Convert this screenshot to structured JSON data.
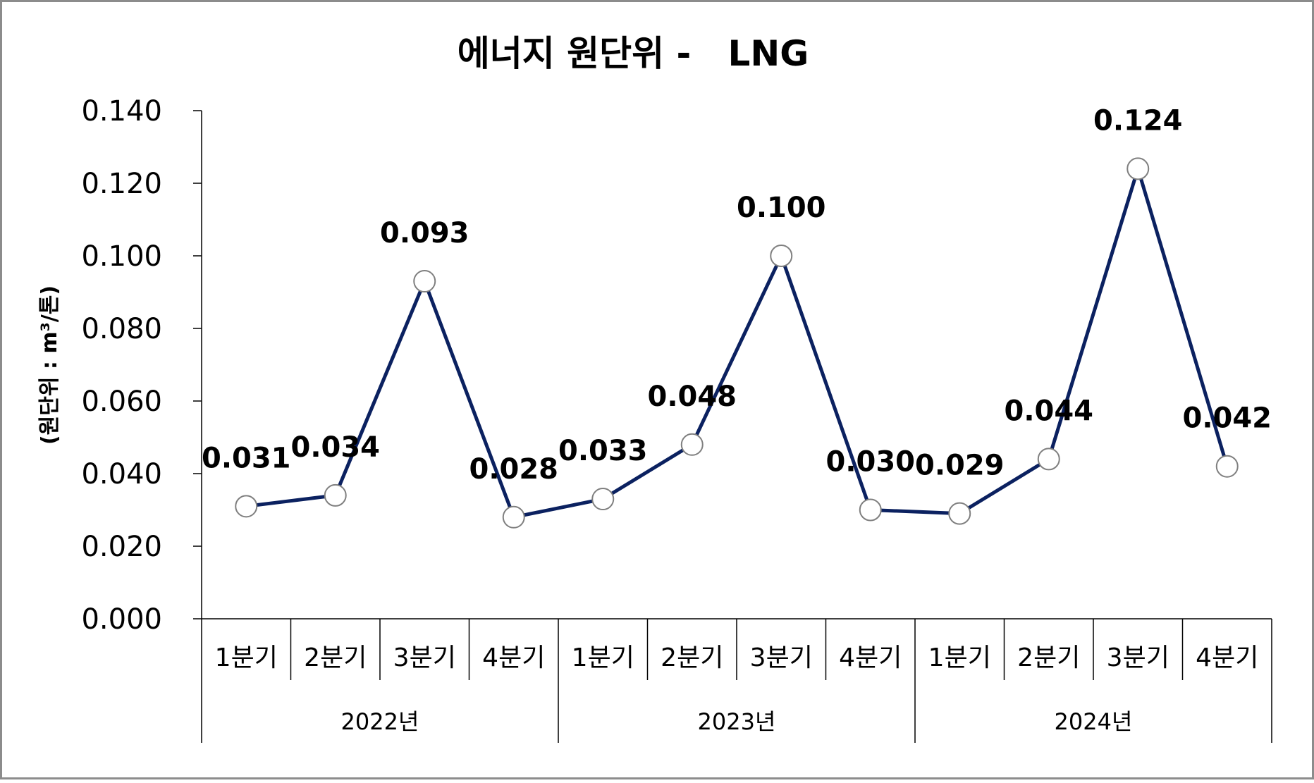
{
  "chart_data": {
    "type": "line",
    "title": "에너지 원단위 -   LNG",
    "ylabel": "(원단위 : m³/톤)",
    "xlabel": "",
    "ylim": [
      0,
      0.14
    ],
    "y_ticks": [
      "0.000",
      "0.020",
      "0.040",
      "0.060",
      "0.080",
      "0.100",
      "0.120",
      "0.140"
    ],
    "grid": false,
    "legend": "none",
    "categories": [
      "1분기",
      "2분기",
      "3분기",
      "4분기",
      "1분기",
      "2분기",
      "3분기",
      "4분기",
      "1분기",
      "2분기",
      "3분기",
      "4분기"
    ],
    "groups": [
      {
        "label": "2022년",
        "span": 4
      },
      {
        "label": "2023년",
        "span": 4
      },
      {
        "label": "2024년",
        "span": 4
      }
    ],
    "series": [
      {
        "values": [
          0.031,
          0.034,
          0.093,
          0.028,
          0.033,
          0.048,
          0.1,
          0.03,
          0.029,
          0.044,
          0.124,
          0.042
        ],
        "labels": [
          "0.031",
          "0.034",
          "0.093",
          "0.028",
          "0.033",
          "0.048",
          "0.100",
          "0.030",
          "0.029",
          "0.044",
          "0.124",
          "0.042"
        ]
      }
    ],
    "colors": {
      "line": "#0b2160",
      "marker_fill": "#ffffff",
      "marker_stroke": "#7f7f7f",
      "axis": "#000000",
      "frame": "#8c8c8c"
    }
  }
}
